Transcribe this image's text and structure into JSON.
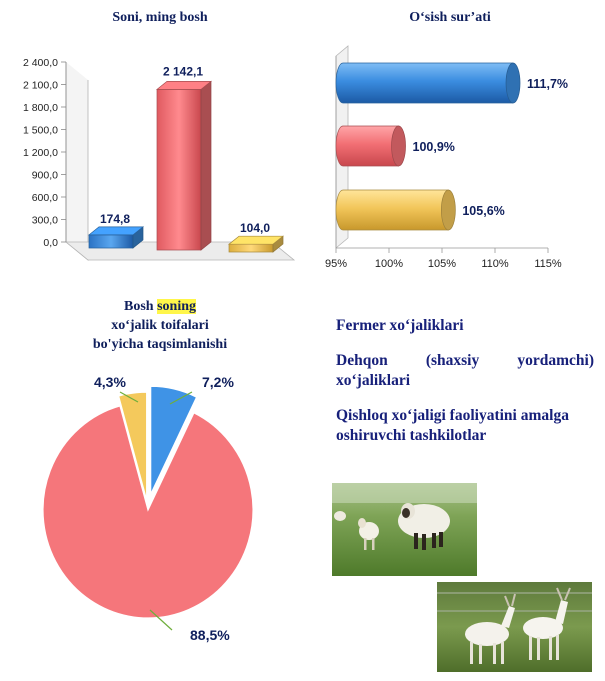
{
  "chart_data": [
    {
      "type": "bar",
      "title": "Soni, ming bosh",
      "categories": [
        "Fermer xo‘jaliklari",
        "Dehqon (shaxsiy yordamchi) xo‘jaliklari",
        "Qishloq xo‘jaligi faoliyatini amalga oshiruvchi tashkilotlar"
      ],
      "values": [
        174.8,
        2142.1,
        104.0
      ],
      "value_labels": [
        "174,8",
        "2 142,1",
        "104,0"
      ],
      "yticks": [
        "0,0",
        "300,0",
        "600,0",
        "900,0",
        "1 200,0",
        "1 500,0",
        "1 800,0",
        "2 100,0",
        "2 400,0"
      ],
      "ylim": [
        0,
        2400
      ],
      "colors": [
        "#3b8de0",
        "#f26f74",
        "#f2c65a"
      ]
    },
    {
      "type": "bar",
      "orientation": "horizontal",
      "title": "O‘sish sur’ati",
      "categories": [
        "Fermer xo‘jaliklari",
        "Dehqon (shaxsiy yordamchi) xo‘jaliklari",
        "Qishloq xo‘jaligi faoliyatini amalga oshiruvchi tashkilotlar"
      ],
      "values": [
        111.7,
        100.9,
        105.6
      ],
      "value_labels": [
        "111,7%",
        "100,9%",
        "105,6%"
      ],
      "xticks": [
        "95%",
        "100%",
        "105%",
        "110%",
        "115%"
      ],
      "xlim": [
        95,
        115
      ],
      "colors": [
        "#3b8de0",
        "#f26f74",
        "#f2c65a"
      ]
    },
    {
      "type": "pie",
      "title_parts": [
        "Bosh ",
        "soning",
        "xo‘jalik toifalari",
        "bo'yicha taqsimlanishi"
      ],
      "categories": [
        "Fermer xo‘jaliklari",
        "Dehqon (shaxsiy yordamchi) xo‘jaliklari",
        "Qishloq xo‘jaligi faoliyatini amalga oshiruvchi tashkilotlar"
      ],
      "values": [
        7.2,
        88.5,
        4.3
      ],
      "value_labels": [
        "7,2%",
        "88,5%",
        "4,3%"
      ],
      "colors": [
        "#3b8de0",
        "#f26f74",
        "#f2c65a"
      ]
    }
  ],
  "legend": {
    "items": [
      "Fermer xo‘jaliklari",
      "Dehqon  (shaxsiy  yordamchi) xo‘jaliklari",
      "Qishloq xo‘jaligi faoliyatini amalga oshiruvchi tashkilotlar"
    ]
  },
  "photos": [
    "sheep-photo",
    "goats-photo"
  ]
}
